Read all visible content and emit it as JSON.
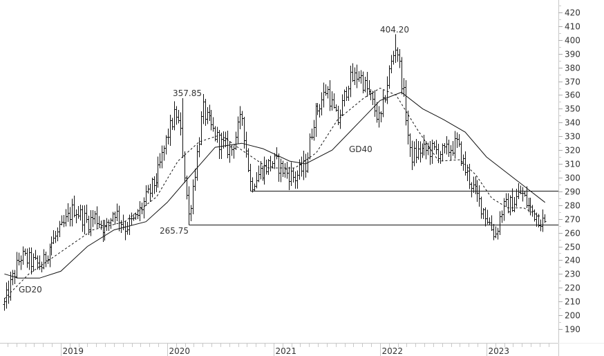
{
  "chart_data": {
    "type": "ohlc",
    "title": "",
    "xlabel": "",
    "ylabel": "",
    "ylim": [
      180,
      430
    ],
    "y_ticks": [
      190,
      200,
      210,
      220,
      230,
      240,
      250,
      260,
      270,
      280,
      290,
      300,
      310,
      320,
      330,
      340,
      350,
      360,
      370,
      380,
      390,
      400,
      410,
      420
    ],
    "x_tick_labels": [
      "2019",
      "2020",
      "2021",
      "2022",
      "2023"
    ],
    "x_range": [
      "2018-06",
      "2023-08"
    ],
    "grid": false,
    "legend": "none",
    "frequency": "weekly",
    "price_path": [
      {
        "t": 2018.47,
        "v": 208
      },
      {
        "t": 2018.55,
        "v": 228
      },
      {
        "t": 2018.62,
        "v": 243
      },
      {
        "t": 2018.75,
        "v": 238
      },
      {
        "t": 2018.82,
        "v": 236
      },
      {
        "t": 2018.9,
        "v": 252
      },
      {
        "t": 2019.0,
        "v": 262
      },
      {
        "t": 2019.12,
        "v": 278
      },
      {
        "t": 2019.25,
        "v": 268
      },
      {
        "t": 2019.32,
        "v": 272
      },
      {
        "t": 2019.42,
        "v": 262
      },
      {
        "t": 2019.5,
        "v": 277
      },
      {
        "t": 2019.6,
        "v": 264
      },
      {
        "t": 2019.7,
        "v": 270
      },
      {
        "t": 2019.8,
        "v": 285
      },
      {
        "t": 2019.9,
        "v": 300
      },
      {
        "t": 2020.0,
        "v": 330
      },
      {
        "t": 2020.08,
        "v": 348
      },
      {
        "t": 2020.13,
        "v": 330
      },
      {
        "t": 2020.2,
        "v": 272
      },
      {
        "t": 2020.25,
        "v": 300
      },
      {
        "t": 2020.33,
        "v": 350
      },
      {
        "t": 2020.42,
        "v": 335
      },
      {
        "t": 2020.5,
        "v": 325
      },
      {
        "t": 2020.6,
        "v": 320
      },
      {
        "t": 2020.7,
        "v": 345
      },
      {
        "t": 2020.78,
        "v": 295
      },
      {
        "t": 2020.88,
        "v": 305
      },
      {
        "t": 2021.0,
        "v": 312
      },
      {
        "t": 2021.1,
        "v": 305
      },
      {
        "t": 2021.2,
        "v": 300
      },
      {
        "t": 2021.3,
        "v": 310
      },
      {
        "t": 2021.38,
        "v": 345
      },
      {
        "t": 2021.5,
        "v": 365
      },
      {
        "t": 2021.6,
        "v": 340
      },
      {
        "t": 2021.7,
        "v": 370
      },
      {
        "t": 2021.8,
        "v": 375
      },
      {
        "t": 2021.9,
        "v": 360
      },
      {
        "t": 2022.0,
        "v": 340
      },
      {
        "t": 2022.08,
        "v": 375
      },
      {
        "t": 2022.15,
        "v": 398
      },
      {
        "t": 2022.22,
        "v": 360
      },
      {
        "t": 2022.28,
        "v": 315
      },
      {
        "t": 2022.38,
        "v": 320
      },
      {
        "t": 2022.5,
        "v": 320
      },
      {
        "t": 2022.6,
        "v": 318
      },
      {
        "t": 2022.72,
        "v": 325
      },
      {
        "t": 2022.8,
        "v": 305
      },
      {
        "t": 2022.9,
        "v": 288
      },
      {
        "t": 2023.0,
        "v": 272
      },
      {
        "t": 2023.08,
        "v": 258
      },
      {
        "t": 2023.15,
        "v": 278
      },
      {
        "t": 2023.25,
        "v": 282
      },
      {
        "t": 2023.32,
        "v": 290
      },
      {
        "t": 2023.4,
        "v": 278
      },
      {
        "t": 2023.48,
        "v": 272
      },
      {
        "t": 2023.55,
        "v": 266
      }
    ],
    "series": [
      {
        "name": "Price (weekly OHLC bars)",
        "style": "ohlc",
        "color": "#111111"
      },
      {
        "name": "GD20",
        "style": "dashed",
        "color": "#111111",
        "points": [
          {
            "t": 2018.47,
            "v": 212
          },
          {
            "t": 2018.7,
            "v": 230
          },
          {
            "t": 2019.0,
            "v": 246
          },
          {
            "t": 2019.3,
            "v": 262
          },
          {
            "t": 2019.6,
            "v": 268
          },
          {
            "t": 2019.9,
            "v": 286
          },
          {
            "t": 2020.1,
            "v": 312
          },
          {
            "t": 2020.3,
            "v": 326
          },
          {
            "t": 2020.5,
            "v": 331
          },
          {
            "t": 2020.7,
            "v": 320
          },
          {
            "t": 2020.95,
            "v": 307
          },
          {
            "t": 2021.2,
            "v": 307
          },
          {
            "t": 2021.4,
            "v": 318
          },
          {
            "t": 2021.6,
            "v": 342
          },
          {
            "t": 2021.85,
            "v": 358
          },
          {
            "t": 2022.0,
            "v": 365
          },
          {
            "t": 2022.15,
            "v": 360
          },
          {
            "t": 2022.35,
            "v": 335
          },
          {
            "t": 2022.55,
            "v": 312
          },
          {
            "t": 2022.75,
            "v": 313
          },
          {
            "t": 2022.9,
            "v": 302
          },
          {
            "t": 2023.05,
            "v": 285
          },
          {
            "t": 2023.2,
            "v": 278
          },
          {
            "t": 2023.35,
            "v": 278
          },
          {
            "t": 2023.5,
            "v": 272
          }
        ]
      },
      {
        "name": "GD40",
        "style": "solid",
        "color": "#111111",
        "points": [
          {
            "t": 2018.47,
            "v": 230
          },
          {
            "t": 2018.6,
            "v": 227
          },
          {
            "t": 2018.8,
            "v": 227
          },
          {
            "t": 2019.0,
            "v": 232
          },
          {
            "t": 2019.25,
            "v": 250
          },
          {
            "t": 2019.5,
            "v": 262
          },
          {
            "t": 2019.8,
            "v": 268
          },
          {
            "t": 2020.0,
            "v": 282
          },
          {
            "t": 2020.2,
            "v": 300
          },
          {
            "t": 2020.45,
            "v": 322
          },
          {
            "t": 2020.7,
            "v": 325
          },
          {
            "t": 2020.9,
            "v": 321
          },
          {
            "t": 2021.15,
            "v": 312
          },
          {
            "t": 2021.3,
            "v": 310
          },
          {
            "t": 2021.55,
            "v": 320
          },
          {
            "t": 2021.8,
            "v": 340
          },
          {
            "t": 2022.0,
            "v": 356
          },
          {
            "t": 2022.2,
            "v": 362
          },
          {
            "t": 2022.4,
            "v": 350
          },
          {
            "t": 2022.6,
            "v": 342
          },
          {
            "t": 2022.8,
            "v": 333
          },
          {
            "t": 2023.0,
            "v": 315
          },
          {
            "t": 2023.2,
            "v": 303
          },
          {
            "t": 2023.35,
            "v": 294
          },
          {
            "t": 2023.55,
            "v": 282
          }
        ]
      }
    ],
    "horizontal_lines": [
      {
        "name": "resistance-290",
        "v": 290.5,
        "from_t": 2020.78,
        "to_t": 2023.75
      },
      {
        "name": "support-265.75",
        "v": 265.75,
        "from_t": 2020.2,
        "to_t": 2023.75
      }
    ],
    "annotations": [
      {
        "text": "357.85",
        "t": 2020.14,
        "v": 357.85,
        "role": "swing-high"
      },
      {
        "text": "265.75",
        "t": 2020.13,
        "v": 265.75,
        "role": "swing-low"
      },
      {
        "text": "404.20",
        "t": 2022.13,
        "v": 404.2,
        "role": "all-time-high"
      },
      {
        "text": "GD20",
        "t": 2018.6,
        "v": 219,
        "role": "series-label"
      },
      {
        "text": "GD40",
        "t": 2021.67,
        "v": 321,
        "role": "series-label"
      }
    ]
  },
  "labels": {
    "gd20": "GD20",
    "gd40": "GD40",
    "peak_2020": "357.85",
    "low_2020": "265.75",
    "peak_2022": "404.20"
  }
}
